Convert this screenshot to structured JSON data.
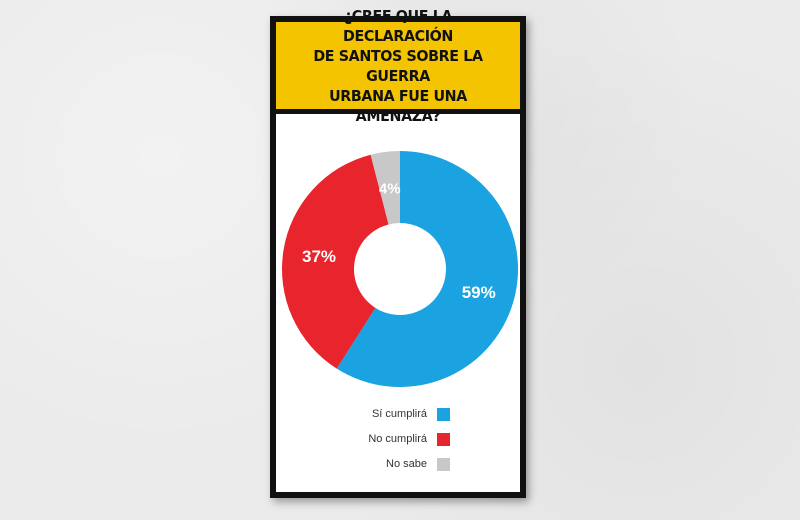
{
  "chart_data": {
    "type": "pie",
    "title": "¿CREE QUE LA DECLARACIÓN DE SANTOS SOBRE LA GUERRA URBANA FUE UNA AMENAZA?",
    "title_lines": [
      "¿CREE QUE LA DECLARACIÓN",
      "DE SANTOS SOBRE LA GUERRA",
      "URBANA FUE UNA AMENAZA?"
    ],
    "donut": true,
    "categories": [
      "Sí cumplirá",
      "No cumplirá",
      "No sabe"
    ],
    "values": [
      59,
      37,
      4
    ],
    "labels": [
      "59%",
      "37%",
      "4%"
    ],
    "colors": [
      "#1aa3e0",
      "#e8242c",
      "#c8c8c8"
    ],
    "title_background": "#f4c400",
    "legend_position": "bottom"
  }
}
